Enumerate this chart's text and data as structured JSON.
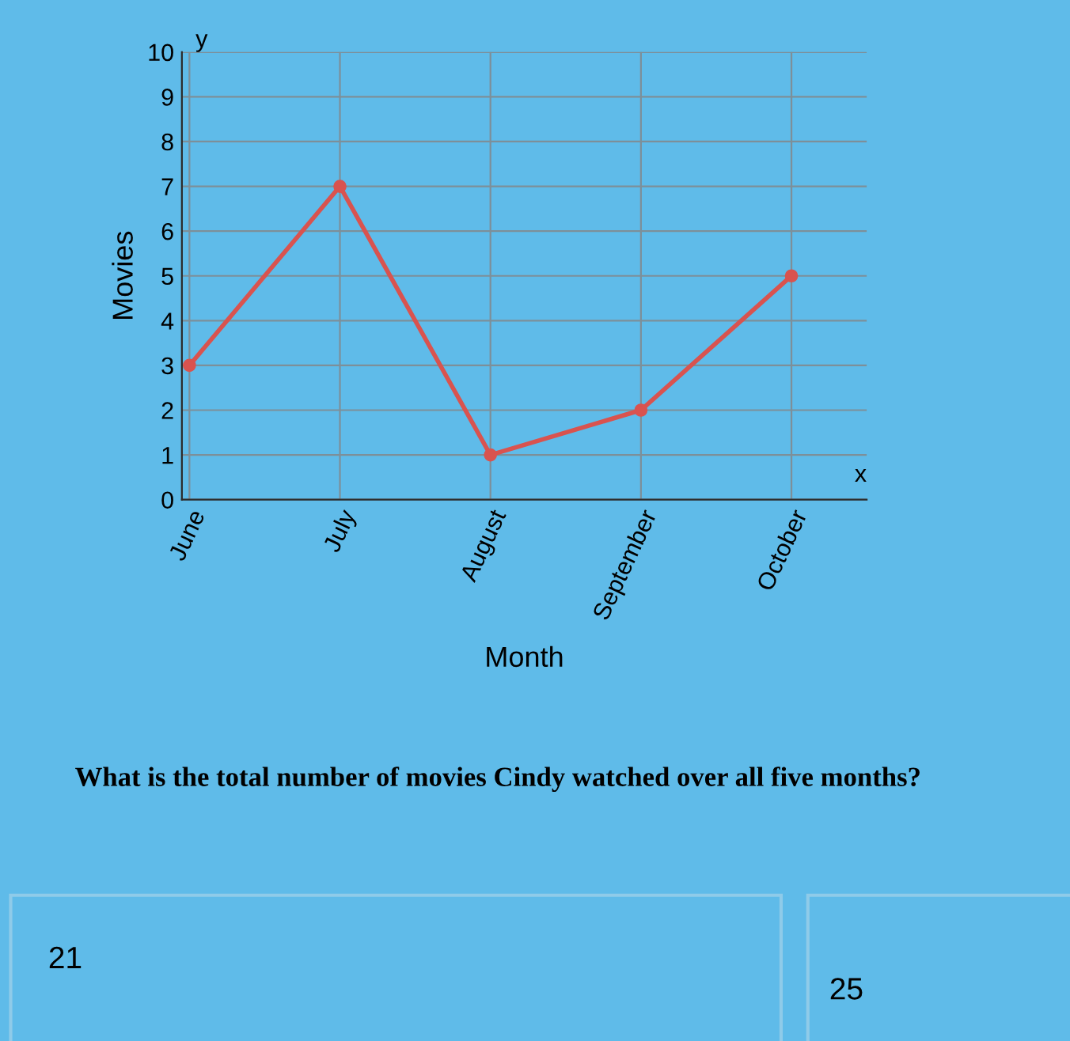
{
  "chart_data": {
    "type": "line",
    "xlabel": "Month",
    "ylabel": "Movies",
    "categories": [
      "June",
      "July",
      "August",
      "September",
      "October"
    ],
    "series": [
      {
        "color": "#d9534f",
        "values": [
          3,
          7,
          1,
          2,
          5
        ]
      }
    ],
    "ylim": [
      0,
      10
    ],
    "yticks": [
      0,
      1,
      2,
      3,
      4,
      5,
      6,
      7,
      8,
      9,
      10
    ],
    "grid": true,
    "marker": "circle",
    "line_style": "solid",
    "annotations": [
      "y",
      "x",
      "What is the total number of movies Cindy watched over all five months?",
      "21",
      "25"
    ]
  }
}
